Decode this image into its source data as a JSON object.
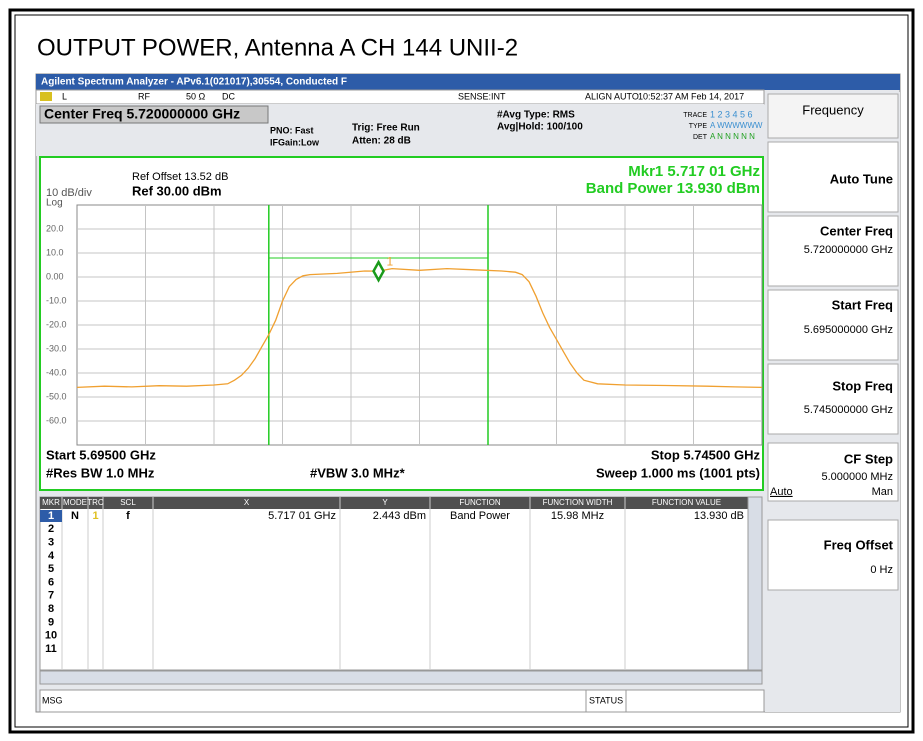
{
  "page_title": "OUTPUT POWER, Antenna A CH 144 UNII-2",
  "window_title": "Agilent Spectrum Analyzer - APv6.1(021017),30554, Conducted F",
  "status": {
    "input": "L",
    "rf": "RF",
    "impedance": "50 Ω",
    "coupling": "DC",
    "sense": "SENSE:INT",
    "align": "ALIGN AUTO",
    "datetime": "10:52:37 AM Feb 14, 2017",
    "trace_label": "TRACE",
    "trace_value": "1 2 3 4 5 6",
    "type_label": "TYPE",
    "type_value": "A WWWWWW",
    "det_label": "DET",
    "det_value": "A N N N N N"
  },
  "header": {
    "center_freq": "Center Freq 5.720000000 GHz",
    "pno": "PNO: Fast",
    "ifgain": "IFGain:Low",
    "trig": "Trig: Free Run",
    "atten": "Atten: 28 dB",
    "avg_type": "#Avg Type: RMS",
    "avg_hold": "Avg|Hold: 100/100"
  },
  "plot": {
    "type": "line",
    "ref_offset": "Ref Offset 13.52 dB",
    "scale": "10 dB/div",
    "ref_level": "Ref 30.00 dBm",
    "scale_type": "Log",
    "marker_readout": "Mkr1 5.717 01 GHz",
    "band_power": "Band Power 13.930 dBm",
    "start": "Start 5.69500 GHz",
    "stop": "Stop 5.74500 GHz",
    "rbw": "#Res BW 1.0 MHz",
    "vbw": "#VBW 3.0 MHz*",
    "sweep": "Sweep  1.000 ms (1001 pts)",
    "xlim": [
      5.695,
      5.745
    ],
    "ylim": [
      -70,
      30
    ],
    "xgrid": [
      5.7,
      5.705,
      5.71,
      5.715,
      5.72,
      5.725,
      5.73,
      5.735,
      5.74
    ],
    "yticks": [
      {
        "value": 20,
        "label": "20.0"
      },
      {
        "value": 10,
        "label": "10.0"
      },
      {
        "value": 0,
        "label": "0.00"
      },
      {
        "value": -10,
        "label": "-10.0"
      },
      {
        "value": -20,
        "label": "-20.0"
      },
      {
        "value": -30,
        "label": "-30.0"
      },
      {
        "value": -40,
        "label": "-40.0"
      },
      {
        "value": -50,
        "label": "-50.0"
      },
      {
        "value": -60,
        "label": "-60.0"
      }
    ],
    "trace": {
      "color": "#f0a030",
      "x": [
        5.695,
        5.697,
        5.699,
        5.701,
        5.703,
        5.705,
        5.706,
        5.7065,
        5.707,
        5.7075,
        5.708,
        5.7085,
        5.709,
        5.7095,
        5.71,
        5.7105,
        5.711,
        5.7115,
        5.712,
        5.714,
        5.716,
        5.717,
        5.718,
        5.72,
        5.722,
        5.724,
        5.726,
        5.727,
        5.7275,
        5.728,
        5.7285,
        5.729,
        5.7295,
        5.73,
        5.7305,
        5.731,
        5.7315,
        5.732,
        5.733,
        5.735,
        5.738,
        5.741,
        5.743,
        5.745
      ],
      "y": [
        -46,
        -45.5,
        -45.8,
        -45.3,
        -45.5,
        -45,
        -44.5,
        -43,
        -41,
        -38,
        -34,
        -29,
        -24,
        -18,
        -10,
        -4,
        -1,
        0.5,
        1,
        1.5,
        2.5,
        2.4,
        3.5,
        2.8,
        3.5,
        3,
        2.5,
        2,
        1,
        -2,
        -8,
        -15,
        -21,
        -26,
        -31,
        -36,
        -40,
        -43,
        -44.5,
        -45,
        -45.2,
        -45.5,
        -45.8,
        -46
      ]
    },
    "band_edges": [
      5.709,
      5.725
    ],
    "band_level": 7.9,
    "marker": {
      "label": "1",
      "x": 5.71701,
      "y": 2.443
    }
  },
  "table": {
    "header": [
      "MKR",
      "MODE",
      "TRC",
      "SCL",
      "X",
      "Y",
      "FUNCTION",
      "FUNCTION WIDTH",
      "FUNCTION VALUE"
    ],
    "rows": [
      [
        "1",
        "N",
        "1",
        "f",
        "5.717 01 GHz",
        "2.443 dBm",
        "Band Power",
        "15.98 MHz",
        "13.930 dB"
      ],
      [
        "2"
      ],
      [
        "3"
      ],
      [
        "4"
      ],
      [
        "5"
      ],
      [
        "6"
      ],
      [
        "7"
      ],
      [
        "8"
      ],
      [
        "9"
      ],
      [
        "10"
      ],
      [
        "11"
      ]
    ]
  },
  "footer": {
    "msg": "MSG",
    "status": "STATUS"
  },
  "softkeys": {
    "menu": "Frequency",
    "auto_tune": "Auto Tune",
    "center_freq": "Center Freq",
    "center_freq_value": "5.720000000 GHz",
    "start_freq": "Start Freq",
    "start_freq_value": "5.695000000 GHz",
    "stop_freq": "Stop Freq",
    "stop_freq_value": "5.745000000 GHz",
    "cf_step": "CF Step",
    "cf_step_value": "5.000000 MHz",
    "cf_auto": "Auto",
    "cf_man": "Man",
    "freq_offset": "Freq Offset",
    "freq_offset_value": "0 Hz"
  }
}
